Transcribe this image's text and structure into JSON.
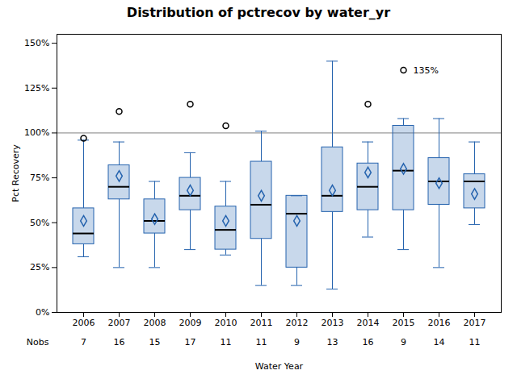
{
  "chart_data": {
    "type": "box",
    "title": "Distribution of pctrecov by water_yr",
    "xlabel": "Water Year",
    "ylabel": "Pct Recovery",
    "categories": [
      "2006",
      "2007",
      "2008",
      "2009",
      "2010",
      "2011",
      "2012",
      "2013",
      "2014",
      "2015",
      "2016",
      "2017"
    ],
    "boxes": [
      {
        "q1": 38,
        "median": 44,
        "q3": 58,
        "whislo": 31,
        "whishi": 96,
        "mean": 51,
        "outliers": [
          97
        ]
      },
      {
        "q1": 63,
        "median": 70,
        "q3": 82,
        "whislo": 25,
        "whishi": 95,
        "mean": 76,
        "outliers": [
          112
        ]
      },
      {
        "q1": 44,
        "median": 51,
        "q3": 63,
        "whislo": 25,
        "whishi": 73,
        "mean": 52,
        "outliers": []
      },
      {
        "q1": 57,
        "median": 65,
        "q3": 75,
        "whislo": 35,
        "whishi": 89,
        "mean": 68,
        "outliers": [
          116
        ]
      },
      {
        "q1": 35,
        "median": 46,
        "q3": 59,
        "whislo": 32,
        "whishi": 73,
        "mean": 51,
        "outliers": [
          104
        ]
      },
      {
        "q1": 41,
        "median": 60,
        "q3": 84,
        "whislo": 15,
        "whishi": 101,
        "mean": 65,
        "outliers": []
      },
      {
        "q1": 25,
        "median": 55,
        "q3": 65,
        "whislo": 15,
        "whishi": 65,
        "mean": 51,
        "outliers": []
      },
      {
        "q1": 56,
        "median": 65,
        "q3": 92,
        "whislo": 13,
        "whishi": 140,
        "mean": 68,
        "outliers": []
      },
      {
        "q1": 57,
        "median": 70,
        "q3": 83,
        "whislo": 42,
        "whishi": 95,
        "mean": 78,
        "outliers": [
          116
        ]
      },
      {
        "q1": 57,
        "median": 79,
        "q3": 104,
        "whislo": 35,
        "whishi": 108,
        "mean": 80,
        "outliers": [
          135
        ]
      },
      {
        "q1": 60,
        "median": 73,
        "q3": 86,
        "whislo": 25,
        "whishi": 108,
        "mean": 72,
        "outliers": []
      },
      {
        "q1": 58,
        "median": 73,
        "q3": 77,
        "whislo": 49,
        "whishi": 95,
        "mean": 66,
        "outliers": []
      }
    ],
    "nobs_label": "Nobs",
    "nobs": [
      7,
      16,
      15,
      17,
      11,
      11,
      9,
      13,
      16,
      9,
      14,
      11
    ],
    "color": "#2563ae",
    "marker": "diamond",
    "hline": 100,
    "annotations": [
      {
        "text": "135%",
        "x": "2015",
        "y": 135
      }
    ],
    "ylim": [
      0,
      155
    ],
    "yticks": [
      {
        "value": 0,
        "label": "0%"
      },
      {
        "value": 25,
        "label": "25%"
      },
      {
        "value": 50,
        "label": "50%"
      },
      {
        "value": 75,
        "label": "75%"
      },
      {
        "value": 100,
        "label": "100%"
      },
      {
        "value": 125,
        "label": "125%"
      },
      {
        "value": 150,
        "label": "150%"
      }
    ]
  }
}
